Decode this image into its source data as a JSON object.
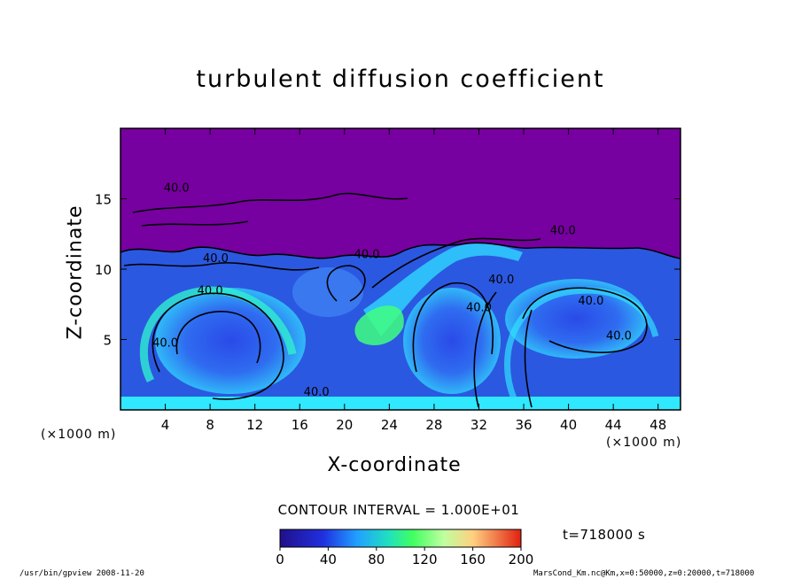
{
  "chart_data": {
    "type": "heatmap",
    "title": "turbulent diffusion coefficient",
    "xlabel": "X-coordinate",
    "ylabel": "Z-coordinate",
    "x_unit": "(×1000 m)",
    "y_unit": "(×1000 m)",
    "xlim": [
      0,
      50
    ],
    "ylim": [
      0,
      20
    ],
    "x_ticks": [
      4,
      8,
      12,
      16,
      20,
      24,
      28,
      32,
      36,
      40,
      44,
      48
    ],
    "y_ticks": [
      5,
      10,
      15
    ],
    "contour_interval": "CONTOUR INTERVAL = 1.000E+01",
    "contour_labels": [
      "40.0",
      "40.0",
      "40.0",
      "40.0",
      "40.0",
      "40.0",
      "40.0",
      "40.0",
      "40.0",
      "40.0",
      "40.0"
    ],
    "colorbar": {
      "min": 0,
      "max": 200,
      "ticks": [
        0,
        40,
        80,
        120,
        160,
        200
      ]
    },
    "time_label": "t=718000 s",
    "colors": {
      "background": "#7700a0",
      "low": "#2020c0",
      "mid": "#20c8ff",
      "high": "#30ff80",
      "peak": "#ffffff"
    }
  },
  "footer": {
    "left": "/usr/bin/gpview  2008-11-20",
    "right": "MarsCond_Km.nc@Km,x=0:50000,z=0:20000,t=718000"
  }
}
